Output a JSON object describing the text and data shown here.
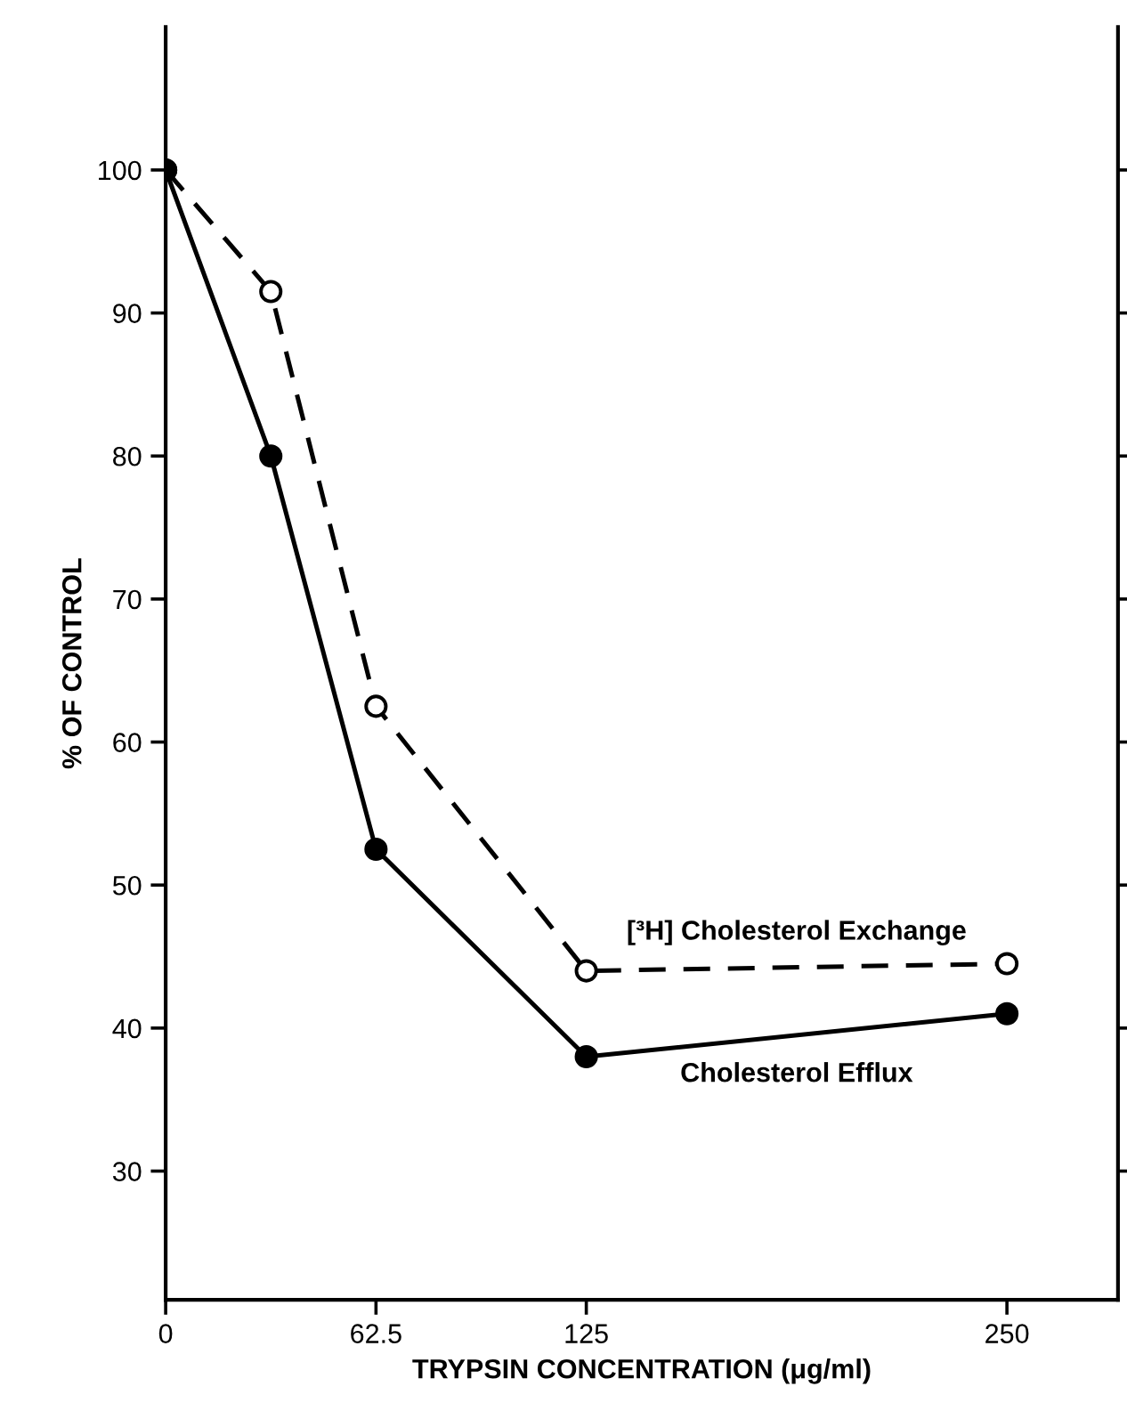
{
  "chart_data": {
    "type": "line",
    "xlabel": "TRYPSIN CONCENTRATION (μg/ml)",
    "ylabel": "% OF CONTROL",
    "x": [
      0,
      31.25,
      62.5,
      125,
      250
    ],
    "series": [
      {
        "name": "[³H] Cholesterol Exchange",
        "color": "#000000",
        "values": [
          100,
          91.5,
          62.5,
          44,
          44.5
        ],
        "line_style": "dashed"
      },
      {
        "name": "Cholesterol Efflux",
        "color": "#000000",
        "values": [
          100,
          80,
          52.5,
          38,
          41
        ],
        "line_style": "solid"
      }
    ],
    "marker": "circle",
    "xlim": [
      0,
      283
    ],
    "xticks": [
      0,
      62.5,
      125,
      250
    ],
    "ylim": [
      21,
      110
    ],
    "yticks": [
      30,
      40,
      50,
      60,
      70,
      80,
      90,
      100
    ],
    "grid": false,
    "legend": false
  }
}
